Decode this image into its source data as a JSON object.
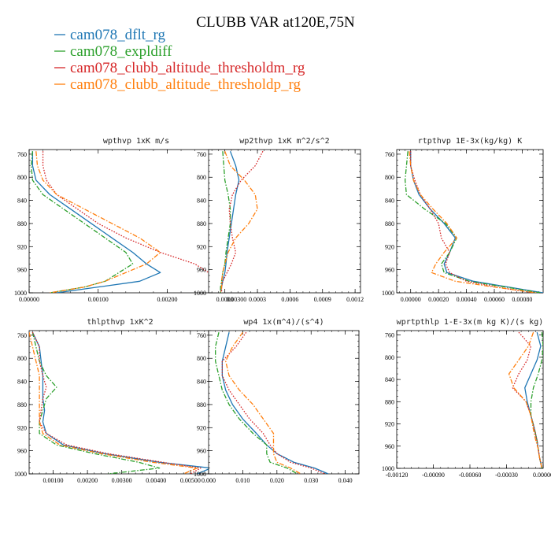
{
  "title": "CLUBB VAR at120E,75N",
  "legend": [
    {
      "name": "cam078_dflt_rg",
      "color": "#1f77b4",
      "dash": "solid"
    },
    {
      "name": "cam078_expldiff",
      "color": "#2ca02c",
      "dash": "dashdot"
    },
    {
      "name": "cam078_clubb_altitude_thresholdm_rg",
      "color": "#d62728",
      "dash": "dotted"
    },
    {
      "name": "cam078_clubb_altitude_thresholdp_rg",
      "color": "#ff7f0e",
      "dash": "dashdot"
    }
  ],
  "chart_data": [
    {
      "type": "line",
      "title": "wpthvp  1xK m/s",
      "xlim": [
        0,
        0.0031
      ],
      "ylim": [
        1000,
        752
      ],
      "xticks": [
        0,
        0.001,
        0.002,
        0.003
      ],
      "xticklabels": [
        "0.00000",
        "0.00100",
        "0.00200",
        "0.00300"
      ],
      "yticks": [
        760,
        800,
        840,
        880,
        920,
        960,
        1000
      ],
      "y": [
        755,
        780,
        805,
        830,
        855,
        880,
        905,
        930,
        950,
        965,
        980,
        990,
        1000
      ],
      "series": [
        {
          "name": "cam078_dflt_rg",
          "x": [
            5e-05,
            5e-05,
            0.0001,
            0.0003,
            0.0006,
            0.0009,
            0.0012,
            0.0015,
            0.0017,
            0.0019,
            0.0016,
            0.001,
            0.0004
          ]
        },
        {
          "name": "cam078_expldiff",
          "x": [
            5e-05,
            3e-05,
            5e-05,
            0.0002,
            0.0005,
            0.0008,
            0.0011,
            0.0014,
            0.0015,
            0.0013,
            0.0011,
            0.0008,
            0.0003
          ]
        },
        {
          "name": "cam078_clubb_altitude_thresholdm_rg",
          "x": [
            0.0002,
            0.0002,
            0.00025,
            0.0004,
            0.0007,
            0.001,
            0.0014,
            0.0019,
            0.0024,
            0.0026,
            0.0028,
            0.003,
            0.0031
          ]
        },
        {
          "name": "cam078_clubb_altitude_thresholdp_rg",
          "x": [
            0.0001,
            0.00012,
            0.0002,
            0.0004,
            0.0008,
            0.0012,
            0.0016,
            0.0019,
            0.0017,
            0.0014,
            0.0011,
            0.0008,
            0.0003
          ]
        }
      ]
    },
    {
      "type": "line",
      "title": "wp2thvp  1xK m^2/s^2",
      "xlim": [
        -0.00015,
        0.00125
      ],
      "ylim": [
        1000,
        752
      ],
      "xticks": [
        0,
        0.0003,
        0.0006,
        0.0009,
        0.0012
      ],
      "xticklabels": [
        "0.0000",
        "0.0003",
        "0.0006",
        "0.0009",
        "0.0012"
      ],
      "yticks": [
        760,
        800,
        840,
        880,
        920,
        960,
        1000
      ],
      "y": [
        755,
        780,
        805,
        830,
        855,
        880,
        905,
        930,
        950,
        965,
        980,
        990,
        1000
      ],
      "series": [
        {
          "name": "cam078_dflt_rg",
          "x": [
            5e-05,
            0.0001,
            0.00013,
            0.0001,
            8e-05,
            6e-05,
            4e-05,
            2e-05,
            1e-05,
            0.0,
            -2e-05,
            -3e-05,
            -4e-05
          ]
        },
        {
          "name": "cam078_expldiff",
          "x": [
            -2e-05,
            -1e-05,
            0.0,
            3e-05,
            5e-05,
            5e-05,
            3e-05,
            1e-05,
            0.0,
            -2e-05,
            -3e-05,
            -4e-05,
            -4e-05
          ]
        },
        {
          "name": "cam078_clubb_altitude_thresholdm_rg",
          "x": [
            0.00035,
            0.00028,
            0.00015,
            7e-05,
            4e-05,
            5e-05,
            7e-05,
            0.0001,
            6e-05,
            2e-05,
            -2e-05,
            -3e-05,
            -3e-05
          ]
        },
        {
          "name": "cam078_clubb_altitude_thresholdp_rg",
          "x": [
            0.0,
            5e-05,
            0.00018,
            0.00028,
            0.0003,
            0.00022,
            0.0001,
            3e-05,
            0.0,
            -2e-05,
            -3e-05,
            -3e-05,
            -4e-05
          ]
        }
      ]
    },
    {
      "type": "line",
      "title": "rtpthvp  1E-3x(kg/kg) K",
      "xlim": [
        -0.0001,
        0.00095
      ],
      "ylim": [
        1000,
        752
      ],
      "xticks": [
        0,
        0.0002,
        0.0004,
        0.0006,
        0.0008
      ],
      "xticklabels": [
        "0.00000",
        "0.00020",
        "0.00040",
        "0.00060",
        "0.00080"
      ],
      "yticks": [
        760,
        800,
        840,
        880,
        920,
        960,
        1000
      ],
      "y": [
        755,
        780,
        805,
        830,
        855,
        880,
        905,
        930,
        950,
        965,
        980,
        990,
        1000
      ],
      "series": [
        {
          "name": "cam078_dflt_rg",
          "x": [
            0.0,
            0.0,
            2e-05,
            6e-05,
            0.00014,
            0.00024,
            0.00032,
            0.00028,
            0.00024,
            0.00026,
            0.00045,
            0.0007,
            0.00095
          ]
        },
        {
          "name": "cam078_expldiff",
          "x": [
            -2e-05,
            -3e-05,
            -4e-05,
            -3e-05,
            0.0001,
            0.00025,
            0.00033,
            0.00028,
            0.00022,
            0.00024,
            0.00042,
            0.00068,
            0.00093
          ]
        },
        {
          "name": "cam078_clubb_altitude_thresholdm_rg",
          "x": [
            0.0,
            0.0,
            3e-05,
            7e-05,
            0.00014,
            0.0002,
            0.00022,
            0.00028,
            0.00025,
            0.00028,
            0.0004,
            0.00062,
            0.00088
          ]
        },
        {
          "name": "cam078_clubb_altitude_thresholdp_rg",
          "x": [
            -1e-05,
            0.0,
            2e-05,
            7e-05,
            0.00016,
            0.00026,
            0.00033,
            0.00024,
            0.00018,
            0.00015,
            0.00032,
            0.0006,
            0.0009
          ]
        }
      ]
    },
    {
      "type": "line",
      "title": "thlpthvp  1xK^2",
      "xlim": [
        0.0003,
        0.0056
      ],
      "ylim": [
        1000,
        752
      ],
      "xticks": [
        0.001,
        0.002,
        0.003,
        0.004,
        0.005
      ],
      "xticklabels": [
        "0.00100",
        "0.00200",
        "0.00300",
        "0.00400",
        "0.00500"
      ],
      "yticks": [
        760,
        800,
        840,
        880,
        920,
        960,
        1000
      ],
      "y": [
        755,
        780,
        805,
        830,
        850,
        870,
        890,
        910,
        930,
        950,
        965,
        980,
        990,
        1000
      ],
      "series": [
        {
          "name": "cam078_dflt_rg",
          "x": [
            0.0004,
            0.0006,
            0.00065,
            0.0007,
            0.0007,
            0.0007,
            0.00075,
            0.0007,
            0.0008,
            0.0013,
            0.0025,
            0.0041,
            0.0056,
            0.0052
          ]
        },
        {
          "name": "cam078_expldiff",
          "x": [
            0.0004,
            0.0005,
            0.0006,
            0.0008,
            0.0011,
            0.0008,
            0.0007,
            0.0006,
            0.0006,
            0.0011,
            0.0022,
            0.0035,
            0.0041,
            0.0026
          ]
        },
        {
          "name": "cam078_clubb_altitude_thresholdm_rg",
          "x": [
            0.0004,
            0.0006,
            0.0006,
            0.0007,
            0.0008,
            0.0007,
            0.00065,
            0.0006,
            0.0008,
            0.0014,
            0.0026,
            0.0042,
            0.0053,
            0.005
          ]
        },
        {
          "name": "cam078_clubb_altitude_thresholdp_rg",
          "x": [
            0.0003,
            0.0004,
            0.0005,
            0.0006,
            0.0006,
            0.0006,
            0.0006,
            0.0006,
            0.0007,
            0.0012,
            0.0024,
            0.0039,
            0.0052,
            0.0048
          ]
        }
      ]
    },
    {
      "type": "line",
      "title": "wp4  1x(m^4)/(s^4)",
      "xlim": [
        0,
        0.044
      ],
      "ylim": [
        1000,
        752
      ],
      "xticks": [
        0,
        0.01,
        0.02,
        0.03,
        0.04
      ],
      "xticklabels": [
        "0.000",
        "0.010",
        "0.020",
        "0.030",
        "0.040"
      ],
      "yticks": [
        760,
        800,
        840,
        880,
        920,
        960,
        1000
      ],
      "y": [
        755,
        780,
        805,
        830,
        855,
        880,
        905,
        930,
        950,
        965,
        980,
        990,
        1000
      ],
      "series": [
        {
          "name": "cam078_dflt_rg",
          "x": [
            0.006,
            0.005,
            0.004,
            0.004,
            0.005,
            0.007,
            0.01,
            0.014,
            0.017,
            0.02,
            0.025,
            0.031,
            0.035
          ]
        },
        {
          "name": "cam078_expldiff",
          "x": [
            0.003,
            0.002,
            0.002,
            0.003,
            0.004,
            0.006,
            0.009,
            0.013,
            0.017,
            0.017,
            0.018,
            0.023,
            0.026
          ]
        },
        {
          "name": "cam078_clubb_altitude_thresholdm_rg",
          "x": [
            0.011,
            0.008,
            0.004,
            0.004,
            0.006,
            0.009,
            0.012,
            0.016,
            0.018,
            0.02,
            0.024,
            0.03,
            0.034
          ]
        },
        {
          "name": "cam078_clubb_altitude_thresholdp_rg",
          "x": [
            0.01,
            0.007,
            0.005,
            0.006,
            0.009,
            0.013,
            0.016,
            0.019,
            0.019,
            0.019,
            0.02,
            0.024,
            0.027
          ]
        }
      ]
    },
    {
      "type": "line",
      "title": "wprtpthlp  1-E-3x(m kg K)/(s kg)",
      "xlim": [
        -0.0012,
        0.0
      ],
      "ylim": [
        1000,
        752
      ],
      "xticks": [
        -0.0012,
        -0.0009,
        -0.0006,
        -0.0003,
        0.0
      ],
      "xticklabels": [
        "-0.00120",
        "-0.00090",
        "-0.00060",
        "-0.00030",
        "0.00000"
      ],
      "yticks": [
        760,
        800,
        840,
        880,
        920,
        960,
        1000
      ],
      "y": [
        755,
        780,
        805,
        830,
        855,
        880,
        905,
        930,
        950,
        965,
        980,
        990,
        1000
      ],
      "series": [
        {
          "name": "cam078_dflt_rg",
          "x": [
            -5e-05,
            -2e-05,
            -5e-05,
            -0.0001,
            -0.00015,
            -0.00013,
            -0.0001,
            -7e-05,
            -5e-05,
            -4e-05,
            -3e-05,
            -2e-05,
            -1e-05
          ]
        },
        {
          "name": "cam078_expldiff",
          "x": [
            -1e-05,
            0.0,
            -1e-05,
            -4e-05,
            -8e-05,
            -0.0001,
            -0.0001,
            -7e-05,
            -5e-05,
            -4e-05,
            -3e-05,
            -2e-05,
            -1e-05
          ]
        },
        {
          "name": "cam078_clubb_altitude_thresholdm_rg",
          "x": [
            -0.0002,
            -0.0001,
            -0.00013,
            -0.0002,
            -0.00025,
            -0.00014,
            -0.0001,
            -7e-05,
            -5e-05,
            -4e-05,
            -3e-05,
            -2e-05,
            -1e-05
          ]
        },
        {
          "name": "cam078_clubb_altitude_thresholdp_rg",
          "x": [
            -8e-05,
            -0.00012,
            -0.0002,
            -0.00028,
            -0.00024,
            -0.00014,
            -0.0001,
            -8e-05,
            -6e-05,
            -4e-05,
            -3e-05,
            -2e-05,
            -1e-05
          ]
        }
      ]
    }
  ]
}
